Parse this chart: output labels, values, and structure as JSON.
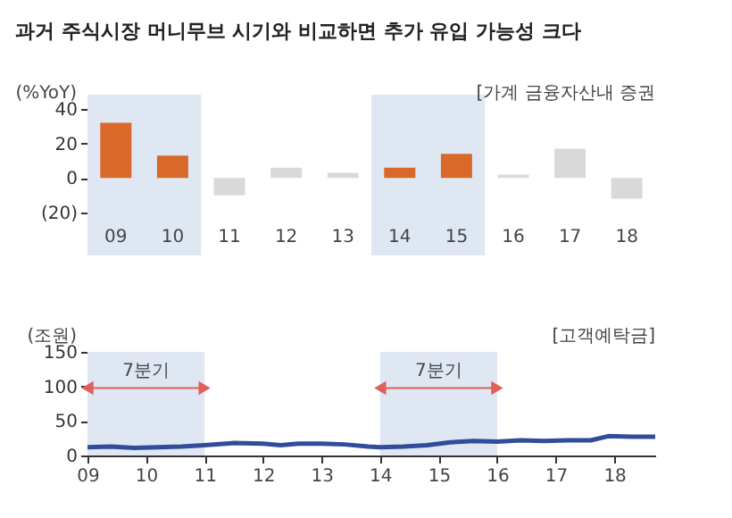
{
  "chart_data": [
    {
      "type": "bar",
      "title": "과거 주식시장 머니무브 시기와 비교하면 추가 유입 가능성 크다",
      "ylabel": "(%YoY)",
      "annotations": [
        "[가계 금융자산내 증권"
      ],
      "categories": [
        "09",
        "10",
        "11",
        "12",
        "13",
        "14",
        "15",
        "16",
        "17",
        "18"
      ],
      "values": [
        32,
        13,
        -10,
        6,
        3,
        6,
        14,
        2,
        17,
        -12
      ],
      "colors": [
        "#d9682b",
        "#d9682b",
        "#d9d9d9",
        "#d9d9d9",
        "#d9d9d9",
        "#d9682b",
        "#d9682b",
        "#d9d9d9",
        "#d9d9d9",
        "#d9d9d9"
      ],
      "ylim": [
        -20,
        40
      ],
      "yticks": [
        {
          "value": -20,
          "label": "(20)"
        },
        0,
        20,
        40
      ],
      "bands": [
        {
          "axis": "x",
          "from": "09",
          "to": "10",
          "color": "#dfe7f3"
        },
        {
          "axis": "x",
          "from": "14",
          "to": "15",
          "color": "#dfe7f3"
        }
      ],
      "grid": false
    },
    {
      "type": "line",
      "ylabel": "(조원)",
      "annotations": [
        "[고객예탁금]"
      ],
      "series": [
        {
          "color": "#2f4d9c",
          "x": [
            9,
            9.4,
            9.8,
            10.2,
            10.6,
            11,
            11.5,
            12,
            12.3,
            12.6,
            13,
            13.4,
            13.8,
            14,
            14.4,
            14.8,
            15.2,
            15.6,
            16,
            16.4,
            16.8,
            17.2,
            17.6,
            17.9,
            18.3,
            18.7
          ],
          "values": [
            12,
            13,
            11,
            12,
            13,
            15,
            18,
            17,
            15,
            17,
            17,
            16,
            13,
            12,
            13,
            15,
            19,
            21,
            20,
            22,
            21,
            22,
            22,
            28,
            27,
            27
          ]
        }
      ],
      "xlim": [
        9,
        18.7
      ],
      "xticks": [
        {
          "value": 9,
          "label": "09"
        },
        {
          "value": 10,
          "label": "10"
        },
        {
          "value": 11,
          "label": "11"
        },
        {
          "value": 12,
          "label": "12"
        },
        {
          "value": 13,
          "label": "13"
        },
        {
          "value": 14,
          "label": "14"
        },
        {
          "value": 15,
          "label": "15"
        },
        {
          "value": 16,
          "label": "16"
        },
        {
          "value": 17,
          "label": "17"
        },
        {
          "value": 18,
          "label": "18"
        }
      ],
      "ylim": [
        0,
        150
      ],
      "yticks": [
        0,
        50,
        100,
        150
      ],
      "bands": [
        {
          "axis": "x",
          "from": 9,
          "to": 11,
          "label": "7분기",
          "color": "#dfe7f3"
        },
        {
          "axis": "x",
          "from": 14,
          "to": 16,
          "label": "7분기",
          "color": "#dfe7f3"
        }
      ],
      "grid": false
    }
  ]
}
